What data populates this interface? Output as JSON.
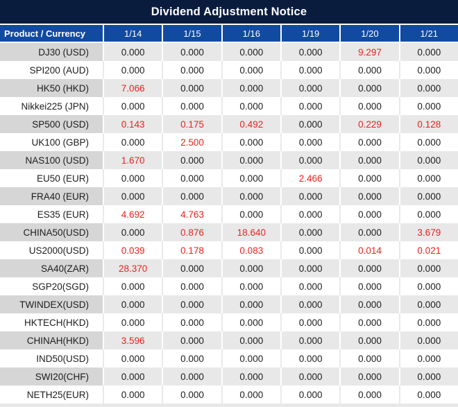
{
  "title_bar": {
    "title": "Dividend Adjustment Notice"
  },
  "colors": {
    "title_bg": "#0a1c3e",
    "header_bg": "#114b9f",
    "alt_row_product_bg": "#d6d6d6",
    "alt_row_value_bg": "#e8e8e8",
    "highlight_red": "#e8231f",
    "text": "#1c1c1c"
  },
  "chart_data": {
    "type": "table",
    "title": "Dividend Adjustment Notice",
    "columns": [
      "Product / Currency",
      "1/14",
      "1/15",
      "1/16",
      "1/19",
      "1/20",
      "1/21"
    ],
    "rows": [
      {
        "product": "DJ30 (USD)",
        "values": [
          "0.000",
          "0.000",
          "0.000",
          "0.000",
          "9.297",
          "0.000"
        ],
        "highlighted": [
          false,
          false,
          false,
          false,
          true,
          false
        ]
      },
      {
        "product": "SPI200 (AUD)",
        "values": [
          "0.000",
          "0.000",
          "0.000",
          "0.000",
          "0.000",
          "0.000"
        ],
        "highlighted": [
          false,
          false,
          false,
          false,
          false,
          false
        ]
      },
      {
        "product": "HK50 (HKD)",
        "values": [
          "7.066",
          "0.000",
          "0.000",
          "0.000",
          "0.000",
          "0.000"
        ],
        "highlighted": [
          true,
          false,
          false,
          false,
          false,
          false
        ]
      },
      {
        "product": "Nikkei225 (JPN)",
        "values": [
          "0.000",
          "0.000",
          "0.000",
          "0.000",
          "0.000",
          "0.000"
        ],
        "highlighted": [
          false,
          false,
          false,
          false,
          false,
          false
        ]
      },
      {
        "product": "SP500 (USD)",
        "values": [
          "0.143",
          "0.175",
          "0.492",
          "0.000",
          "0.229",
          "0.128"
        ],
        "highlighted": [
          true,
          true,
          true,
          false,
          true,
          true
        ]
      },
      {
        "product": "UK100 (GBP)",
        "values": [
          "0.000",
          "2.500",
          "0.000",
          "0.000",
          "0.000",
          "0.000"
        ],
        "highlighted": [
          false,
          true,
          false,
          false,
          false,
          false
        ]
      },
      {
        "product": "NAS100 (USD)",
        "values": [
          "1.670",
          "0.000",
          "0.000",
          "0.000",
          "0.000",
          "0.000"
        ],
        "highlighted": [
          true,
          false,
          false,
          false,
          false,
          false
        ]
      },
      {
        "product": "EU50 (EUR)",
        "values": [
          "0.000",
          "0.000",
          "0.000",
          "2.466",
          "0.000",
          "0.000"
        ],
        "highlighted": [
          false,
          false,
          false,
          true,
          false,
          false
        ]
      },
      {
        "product": "FRA40 (EUR)",
        "values": [
          "0.000",
          "0.000",
          "0.000",
          "0.000",
          "0.000",
          "0.000"
        ],
        "highlighted": [
          false,
          false,
          false,
          false,
          false,
          false
        ]
      },
      {
        "product": "ES35 (EUR)",
        "values": [
          "4.692",
          "4.763",
          "0.000",
          "0.000",
          "0.000",
          "0.000"
        ],
        "highlighted": [
          true,
          true,
          false,
          false,
          false,
          false
        ]
      },
      {
        "product": "CHINA50(USD)",
        "values": [
          "0.000",
          "0.876",
          "18.640",
          "0.000",
          "0.000",
          "3.679"
        ],
        "highlighted": [
          false,
          true,
          true,
          false,
          false,
          true
        ]
      },
      {
        "product": "US2000(USD)",
        "values": [
          "0.039",
          "0.178",
          "0.083",
          "0.000",
          "0.014",
          "0.021"
        ],
        "highlighted": [
          true,
          true,
          true,
          false,
          true,
          true
        ]
      },
      {
        "product": "SA40(ZAR)",
        "values": [
          "28.370",
          "0.000",
          "0.000",
          "0.000",
          "0.000",
          "0.000"
        ],
        "highlighted": [
          true,
          false,
          false,
          false,
          false,
          false
        ]
      },
      {
        "product": "SGP20(SGD)",
        "values": [
          "0.000",
          "0.000",
          "0.000",
          "0.000",
          "0.000",
          "0.000"
        ],
        "highlighted": [
          false,
          false,
          false,
          false,
          false,
          false
        ]
      },
      {
        "product": "TWINDEX(USD)",
        "values": [
          "0.000",
          "0.000",
          "0.000",
          "0.000",
          "0.000",
          "0.000"
        ],
        "highlighted": [
          false,
          false,
          false,
          false,
          false,
          false
        ]
      },
      {
        "product": "HKTECH(HKD)",
        "values": [
          "0.000",
          "0.000",
          "0.000",
          "0.000",
          "0.000",
          "0.000"
        ],
        "highlighted": [
          false,
          false,
          false,
          false,
          false,
          false
        ]
      },
      {
        "product": "CHINAH(HKD)",
        "values": [
          "3.596",
          "0.000",
          "0.000",
          "0.000",
          "0.000",
          "0.000"
        ],
        "highlighted": [
          true,
          false,
          false,
          false,
          false,
          false
        ]
      },
      {
        "product": "IND50(USD)",
        "values": [
          "0.000",
          "0.000",
          "0.000",
          "0.000",
          "0.000",
          "0.000"
        ],
        "highlighted": [
          false,
          false,
          false,
          false,
          false,
          false
        ]
      },
      {
        "product": "SWI20(CHF)",
        "values": [
          "0.000",
          "0.000",
          "0.000",
          "0.000",
          "0.000",
          "0.000"
        ],
        "highlighted": [
          false,
          false,
          false,
          false,
          false,
          false
        ]
      },
      {
        "product": "NETH25(EUR)",
        "values": [
          "0.000",
          "0.000",
          "0.000",
          "0.000",
          "0.000",
          "0.000"
        ],
        "highlighted": [
          false,
          false,
          false,
          false,
          false,
          false
        ]
      }
    ]
  }
}
